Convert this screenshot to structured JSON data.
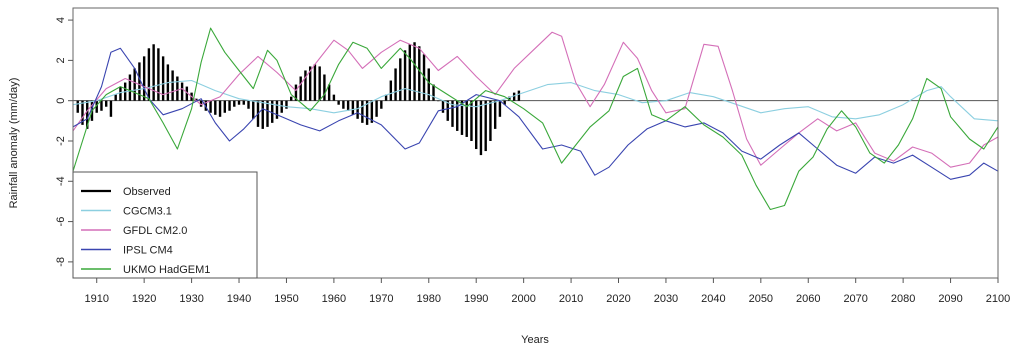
{
  "chart_data": {
    "type": "line",
    "xlabel": "Years",
    "ylabel": "Rainfall anomaly (mm/day)",
    "xlim": [
      1905,
      2100
    ],
    "ylim": [
      -8.8,
      4.6
    ],
    "x_ticks": [
      "1910",
      "1920",
      "1930",
      "1940",
      "1950",
      "1960",
      "1970",
      "1980",
      "1990",
      "2000",
      "2010",
      "2020",
      "2030",
      "2040",
      "2050",
      "2060",
      "2070",
      "2080",
      "2090",
      "2100"
    ],
    "y_ticks": [
      "4",
      "2",
      "0",
      "-2",
      "-4",
      "-6",
      "-8"
    ],
    "legend_position": "bottom-left",
    "reference_line": 0,
    "observed": {
      "name": "Observed",
      "color": "#000000",
      "style": "bars",
      "points": [
        [
          1906,
          -0.6
        ],
        [
          1907,
          -1.2
        ],
        [
          1908,
          -1.4
        ],
        [
          1909,
          -1.0
        ],
        [
          1910,
          -0.6
        ],
        [
          1911,
          -0.5
        ],
        [
          1912,
          -0.3
        ],
        [
          1913,
          -0.8
        ],
        [
          1914,
          0.3
        ],
        [
          1915,
          0.7
        ],
        [
          1916,
          0.9
        ],
        [
          1917,
          1.3
        ],
        [
          1918,
          1.6
        ],
        [
          1919,
          1.9
        ],
        [
          1920,
          2.2
        ],
        [
          1921,
          2.6
        ],
        [
          1922,
          2.8
        ],
        [
          1923,
          2.6
        ],
        [
          1924,
          2.2
        ],
        [
          1925,
          1.8
        ],
        [
          1926,
          1.5
        ],
        [
          1927,
          1.2
        ],
        [
          1928,
          0.9
        ],
        [
          1929,
          0.7
        ],
        [
          1930,
          0.4
        ],
        [
          1931,
          0.1
        ],
        [
          1932,
          -0.3
        ],
        [
          1933,
          -0.5
        ],
        [
          1934,
          -0.6
        ],
        [
          1935,
          -0.7
        ],
        [
          1936,
          -0.8
        ],
        [
          1937,
          -0.6
        ],
        [
          1938,
          -0.5
        ],
        [
          1939,
          -0.3
        ],
        [
          1940,
          -0.2
        ],
        [
          1941,
          -0.2
        ],
        [
          1942,
          -0.4
        ],
        [
          1943,
          -0.9
        ],
        [
          1944,
          -1.3
        ],
        [
          1945,
          -1.4
        ],
        [
          1946,
          -1.3
        ],
        [
          1947,
          -1.1
        ],
        [
          1948,
          -0.9
        ],
        [
          1949,
          -0.6
        ],
        [
          1950,
          -0.4
        ],
        [
          1951,
          0.2
        ],
        [
          1952,
          0.8
        ],
        [
          1953,
          1.2
        ],
        [
          1954,
          1.5
        ],
        [
          1955,
          1.7
        ],
        [
          1956,
          1.8
        ],
        [
          1957,
          1.7
        ],
        [
          1958,
          1.3
        ],
        [
          1959,
          0.8
        ],
        [
          1960,
          0.3
        ],
        [
          1961,
          -0.2
        ],
        [
          1962,
          -0.4
        ],
        [
          1963,
          -0.5
        ],
        [
          1964,
          -0.7
        ],
        [
          1965,
          -0.9
        ],
        [
          1966,
          -1.1
        ],
        [
          1967,
          -1.2
        ],
        [
          1968,
          -1.1
        ],
        [
          1969,
          -0.8
        ],
        [
          1970,
          -0.4
        ],
        [
          1971,
          0.3
        ],
        [
          1972,
          1.0
        ],
        [
          1973,
          1.6
        ],
        [
          1974,
          2.1
        ],
        [
          1975,
          2.5
        ],
        [
          1976,
          2.8
        ],
        [
          1977,
          2.9
        ],
        [
          1978,
          2.7
        ],
        [
          1979,
          2.3
        ],
        [
          1980,
          1.6
        ],
        [
          1981,
          0.8
        ],
        [
          1982,
          0.0
        ],
        [
          1983,
          -0.6
        ],
        [
          1984,
          -1.0
        ],
        [
          1985,
          -1.3
        ],
        [
          1986,
          -1.5
        ],
        [
          1987,
          -1.7
        ],
        [
          1988,
          -1.8
        ],
        [
          1989,
          -2.0
        ],
        [
          1990,
          -2.4
        ],
        [
          1991,
          -2.7
        ],
        [
          1992,
          -2.5
        ],
        [
          1993,
          -2.0
        ],
        [
          1994,
          -1.4
        ],
        [
          1995,
          -0.8
        ],
        [
          1996,
          -0.2
        ],
        [
          1997,
          0.2
        ],
        [
          1998,
          0.4
        ],
        [
          1999,
          0.5
        ]
      ]
    },
    "series": [
      {
        "name": "CGCM3.1",
        "color": "#8ccfe0",
        "points": [
          [
            1905,
            -0.2
          ],
          [
            1910,
            0.0
          ],
          [
            1915,
            0.4
          ],
          [
            1920,
            0.6
          ],
          [
            1925,
            0.9
          ],
          [
            1930,
            1.0
          ],
          [
            1935,
            0.5
          ],
          [
            1940,
            0.1
          ],
          [
            1945,
            -0.1
          ],
          [
            1950,
            -0.3
          ],
          [
            1955,
            -0.4
          ],
          [
            1960,
            -0.6
          ],
          [
            1965,
            -0.4
          ],
          [
            1970,
            0.2
          ],
          [
            1975,
            0.6
          ],
          [
            1980,
            0.3
          ],
          [
            1985,
            -0.2
          ],
          [
            1990,
            -0.3
          ],
          [
            1995,
            0.0
          ],
          [
            2000,
            0.4
          ],
          [
            2005,
            0.8
          ],
          [
            2010,
            0.9
          ],
          [
            2015,
            0.5
          ],
          [
            2020,
            0.3
          ],
          [
            2025,
            -0.1
          ],
          [
            2030,
            0.0
          ],
          [
            2035,
            0.4
          ],
          [
            2040,
            0.2
          ],
          [
            2045,
            -0.2
          ],
          [
            2050,
            -0.6
          ],
          [
            2055,
            -0.4
          ],
          [
            2060,
            -0.3
          ],
          [
            2065,
            -0.8
          ],
          [
            2070,
            -0.9
          ],
          [
            2075,
            -0.7
          ],
          [
            2080,
            -0.2
          ],
          [
            2085,
            0.5
          ],
          [
            2088,
            0.7
          ],
          [
            2090,
            0.2
          ],
          [
            2095,
            -0.9
          ],
          [
            2100,
            -1.0
          ]
        ]
      },
      {
        "name": "GFDL CM2.0",
        "color": "#d46fb8",
        "points": [
          [
            1905,
            -1.5
          ],
          [
            1908,
            -0.5
          ],
          [
            1912,
            0.6
          ],
          [
            1916,
            1.1
          ],
          [
            1920,
            0.7
          ],
          [
            1924,
            0.3
          ],
          [
            1928,
            0.6
          ],
          [
            1932,
            -0.2
          ],
          [
            1936,
            0.2
          ],
          [
            1940,
            1.3
          ],
          [
            1944,
            2.2
          ],
          [
            1948,
            1.4
          ],
          [
            1952,
            0.5
          ],
          [
            1956,
            1.8
          ],
          [
            1960,
            3.0
          ],
          [
            1963,
            2.5
          ],
          [
            1966,
            1.6
          ],
          [
            1970,
            2.4
          ],
          [
            1974,
            3.0
          ],
          [
            1978,
            2.6
          ],
          [
            1982,
            1.5
          ],
          [
            1986,
            2.2
          ],
          [
            1990,
            1.2
          ],
          [
            1994,
            0.3
          ],
          [
            1998,
            1.6
          ],
          [
            2002,
            2.5
          ],
          [
            2006,
            3.4
          ],
          [
            2008,
            3.2
          ],
          [
            2011,
            0.9
          ],
          [
            2014,
            -0.3
          ],
          [
            2017,
            0.8
          ],
          [
            2021,
            2.9
          ],
          [
            2024,
            2.1
          ],
          [
            2027,
            0.5
          ],
          [
            2030,
            -0.6
          ],
          [
            2034,
            -0.4
          ],
          [
            2038,
            2.8
          ],
          [
            2041,
            2.7
          ],
          [
            2044,
            0.5
          ],
          [
            2047,
            -1.9
          ],
          [
            2050,
            -3.2
          ],
          [
            2054,
            -2.4
          ],
          [
            2058,
            -1.6
          ],
          [
            2062,
            -0.9
          ],
          [
            2066,
            -1.5
          ],
          [
            2070,
            -1.1
          ],
          [
            2074,
            -2.6
          ],
          [
            2078,
            -3.0
          ],
          [
            2082,
            -2.3
          ],
          [
            2086,
            -2.6
          ],
          [
            2090,
            -3.3
          ],
          [
            2094,
            -3.1
          ],
          [
            2097,
            -2.2
          ],
          [
            2100,
            -1.8
          ]
        ]
      },
      {
        "name": "IPSL CM4",
        "color": "#3a45b0",
        "points": [
          [
            1905,
            -1.3
          ],
          [
            1908,
            -0.9
          ],
          [
            1911,
            0.7
          ],
          [
            1913,
            2.4
          ],
          [
            1915,
            2.6
          ],
          [
            1918,
            1.6
          ],
          [
            1921,
            0.1
          ],
          [
            1924,
            -0.7
          ],
          [
            1928,
            -0.4
          ],
          [
            1932,
            0.1
          ],
          [
            1935,
            -1.1
          ],
          [
            1938,
            -2.0
          ],
          [
            1941,
            -1.4
          ],
          [
            1945,
            -0.4
          ],
          [
            1949,
            -0.8
          ],
          [
            1953,
            -1.2
          ],
          [
            1957,
            -1.5
          ],
          [
            1961,
            -1.0
          ],
          [
            1965,
            -0.6
          ],
          [
            1970,
            -1.2
          ],
          [
            1975,
            -2.4
          ],
          [
            1978,
            -2.1
          ],
          [
            1982,
            -0.5
          ],
          [
            1986,
            -0.3
          ],
          [
            1990,
            0.3
          ],
          [
            1995,
            0.0
          ],
          [
            1999,
            -0.8
          ],
          [
            2004,
            -2.4
          ],
          [
            2008,
            -2.2
          ],
          [
            2012,
            -2.5
          ],
          [
            2015,
            -3.7
          ],
          [
            2018,
            -3.3
          ],
          [
            2022,
            -2.2
          ],
          [
            2026,
            -1.4
          ],
          [
            2030,
            -1.0
          ],
          [
            2034,
            -1.3
          ],
          [
            2038,
            -1.1
          ],
          [
            2042,
            -1.6
          ],
          [
            2046,
            -2.5
          ],
          [
            2050,
            -2.9
          ],
          [
            2054,
            -2.2
          ],
          [
            2058,
            -1.6
          ],
          [
            2062,
            -2.4
          ],
          [
            2066,
            -3.2
          ],
          [
            2070,
            -3.6
          ],
          [
            2074,
            -2.8
          ],
          [
            2078,
            -3.1
          ],
          [
            2082,
            -2.7
          ],
          [
            2086,
            -3.3
          ],
          [
            2090,
            -3.9
          ],
          [
            2094,
            -3.7
          ],
          [
            2097,
            -3.1
          ],
          [
            2100,
            -3.5
          ]
        ]
      },
      {
        "name": "UKMO HadGEM1",
        "color": "#3aa83a",
        "points": [
          [
            1905,
            -3.5
          ],
          [
            1907,
            -2.0
          ],
          [
            1909,
            -0.5
          ],
          [
            1912,
            0.3
          ],
          [
            1915,
            0.7
          ],
          [
            1918,
            0.4
          ],
          [
            1921,
            0.1
          ],
          [
            1924,
            -1.1
          ],
          [
            1927,
            -2.4
          ],
          [
            1930,
            -0.4
          ],
          [
            1932,
            1.9
          ],
          [
            1934,
            3.6
          ],
          [
            1937,
            2.4
          ],
          [
            1940,
            1.5
          ],
          [
            1943,
            0.6
          ],
          [
            1946,
            2.5
          ],
          [
            1948,
            2.0
          ],
          [
            1951,
            0.3
          ],
          [
            1955,
            -0.5
          ],
          [
            1958,
            0.3
          ],
          [
            1961,
            1.8
          ],
          [
            1964,
            2.9
          ],
          [
            1967,
            2.6
          ],
          [
            1970,
            1.6
          ],
          [
            1974,
            2.6
          ],
          [
            1976,
            2.1
          ],
          [
            1980,
            0.9
          ],
          [
            1984,
            0.3
          ],
          [
            1988,
            -0.3
          ],
          [
            1992,
            0.5
          ],
          [
            1996,
            0.2
          ],
          [
            2000,
            -0.4
          ],
          [
            2004,
            -1.1
          ],
          [
            2008,
            -3.1
          ],
          [
            2011,
            -2.2
          ],
          [
            2014,
            -1.3
          ],
          [
            2018,
            -0.5
          ],
          [
            2021,
            1.2
          ],
          [
            2024,
            1.6
          ],
          [
            2027,
            -0.7
          ],
          [
            2030,
            -1.0
          ],
          [
            2034,
            -0.3
          ],
          [
            2038,
            -1.2
          ],
          [
            2042,
            -1.8
          ],
          [
            2046,
            -2.7
          ],
          [
            2049,
            -4.2
          ],
          [
            2052,
            -5.4
          ],
          [
            2055,
            -5.2
          ],
          [
            2058,
            -3.5
          ],
          [
            2061,
            -2.8
          ],
          [
            2064,
            -1.4
          ],
          [
            2067,
            -0.5
          ],
          [
            2070,
            -1.3
          ],
          [
            2073,
            -2.6
          ],
          [
            2076,
            -3.1
          ],
          [
            2079,
            -2.2
          ],
          [
            2082,
            -0.9
          ],
          [
            2085,
            1.1
          ],
          [
            2088,
            0.6
          ],
          [
            2090,
            -0.8
          ],
          [
            2094,
            -1.9
          ],
          [
            2097,
            -2.4
          ],
          [
            2100,
            -1.3
          ]
        ]
      }
    ]
  }
}
